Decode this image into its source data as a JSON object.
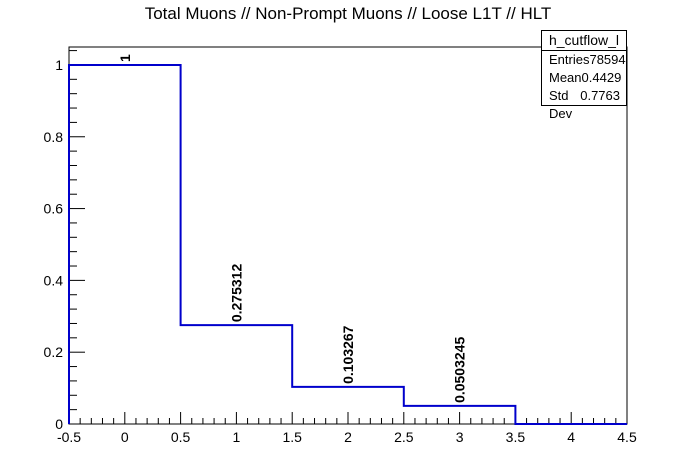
{
  "chart_data": {
    "type": "bar",
    "style": "step-histogram",
    "title": "Total Muons // Non-Prompt Muons // Loose L1T // HLT",
    "xlabel": "",
    "ylabel": "",
    "bin_edges": [
      -0.5,
      0.5,
      1.5,
      2.5,
      3.5,
      4.5
    ],
    "categories": [
      "0",
      "1",
      "2",
      "3",
      "4"
    ],
    "values": [
      1,
      0.275312,
      0.103267,
      0.0503245,
      0
    ],
    "value_labels": [
      "1",
      "0.275312",
      "0.103267",
      "0.0503245",
      ""
    ],
    "xlim": [
      -0.5,
      4.5
    ],
    "ylim": [
      0,
      1.05
    ],
    "x_ticks": [
      "-0.5",
      "0",
      "0.5",
      "1",
      "1.5",
      "2",
      "2.5",
      "3",
      "3.5",
      "4",
      "4.5"
    ],
    "y_ticks": [
      "0",
      "0.2",
      "0.4",
      "0.6",
      "0.8",
      "1"
    ],
    "line_color": "#0000cc",
    "grid": false,
    "stats": {
      "name": "h_cutflow_l",
      "entries_label": "Entries",
      "entries": "78594",
      "mean_label": "Mean",
      "mean": "0.4429",
      "stddev_label": "Std Dev",
      "stddev": "0.7763"
    }
  }
}
